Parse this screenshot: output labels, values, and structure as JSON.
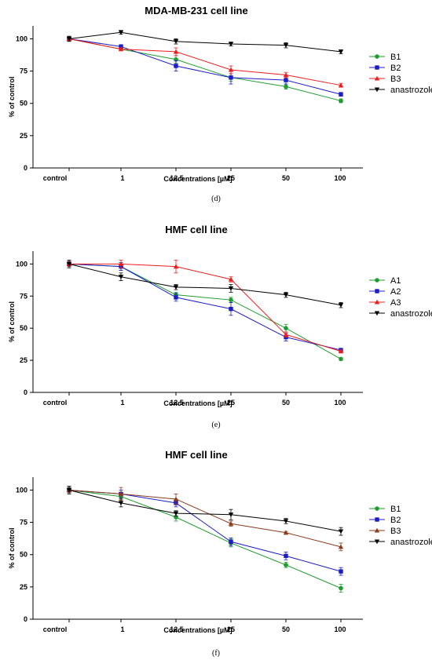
{
  "chart_data": [
    {
      "type": "line",
      "title": "MDA-MB-231 cell line",
      "xlabel": "Concentrations [µM]",
      "ylabel": "% of control",
      "panel_label": "(d)",
      "categories": [
        "control",
        "1",
        "12.5",
        "25",
        "50",
        "100"
      ],
      "ylim": [
        0,
        110
      ],
      "yticks": [
        0,
        25,
        50,
        75,
        100
      ],
      "grid": false,
      "legend_position": "right",
      "series": [
        {
          "name": "B1",
          "color": "#1e9c2e",
          "marker": "circle",
          "values": [
            100,
            92,
            84,
            70,
            63,
            52
          ],
          "errors": [
            1.5,
            1,
            3,
            3,
            2,
            1.5
          ]
        },
        {
          "name": "B2",
          "color": "#1c1cc8",
          "marker": "square",
          "values": [
            100,
            94,
            79,
            70,
            68,
            57
          ],
          "errors": [
            1.5,
            1.5,
            4,
            5,
            3,
            1.5
          ]
        },
        {
          "name": "B3",
          "color": "#f01c1c",
          "marker": "triangle-up",
          "values": [
            100,
            92,
            90,
            76,
            72,
            64
          ],
          "errors": [
            1.5,
            1,
            3,
            3,
            2,
            1.5
          ]
        },
        {
          "name": "anastrozole",
          "color": "#000000",
          "marker": "triangle-down",
          "values": [
            100,
            105,
            98,
            96,
            95,
            90
          ],
          "errors": [
            2,
            1.5,
            2,
            1.5,
            2,
            1.5
          ]
        }
      ]
    },
    {
      "type": "line",
      "title": "HMF cell line",
      "xlabel": "Concentrations [µM]",
      "ylabel": "% of control",
      "panel_label": "(e)",
      "categories": [
        "control",
        "1",
        "12.5",
        "25",
        "50",
        "100"
      ],
      "ylim": [
        0,
        110
      ],
      "yticks": [
        0,
        25,
        50,
        75,
        100
      ],
      "grid": false,
      "legend_position": "right",
      "series": [
        {
          "name": "A1",
          "color": "#1e9c2e",
          "marker": "circle",
          "values": [
            100,
            98,
            76,
            72,
            50,
            26
          ],
          "errors": [
            2,
            3,
            2,
            2,
            3,
            1
          ]
        },
        {
          "name": "A2",
          "color": "#1c1cc8",
          "marker": "square",
          "values": [
            100,
            98,
            74,
            65,
            43,
            33
          ],
          "errors": [
            2,
            3,
            3,
            5,
            3,
            1
          ]
        },
        {
          "name": "A3",
          "color": "#f01c1c",
          "marker": "triangle-up",
          "values": [
            100,
            100,
            98,
            88,
            45,
            32
          ],
          "errors": [
            2,
            3,
            5,
            2,
            2,
            1
          ]
        },
        {
          "name": "anastrozole",
          "color": "#000000",
          "marker": "triangle-down",
          "values": [
            100,
            90,
            82,
            81,
            76,
            68
          ],
          "errors": [
            3,
            3,
            2,
            3,
            2,
            2
          ]
        }
      ]
    },
    {
      "type": "line",
      "title": "HMF cell line",
      "xlabel": "Concentrations [µM]",
      "ylabel": "% of control",
      "panel_label": "(f)",
      "categories": [
        "control",
        "1",
        "12.5",
        "25",
        "50",
        "100"
      ],
      "ylim": [
        0,
        110
      ],
      "yticks": [
        0,
        25,
        50,
        75,
        100
      ],
      "grid": false,
      "legend_position": "right",
      "series": [
        {
          "name": "B1",
          "color": "#1e9c2e",
          "marker": "circle",
          "values": [
            100,
            95,
            79,
            59,
            42,
            24
          ],
          "errors": [
            2,
            2,
            3,
            3,
            2,
            3
          ]
        },
        {
          "name": "B2",
          "color": "#1c1cc8",
          "marker": "square",
          "values": [
            100,
            97,
            90,
            60,
            49,
            37
          ],
          "errors": [
            2,
            3,
            3,
            3,
            3,
            3
          ]
        },
        {
          "name": "B3",
          "color": "#8b3a1a",
          "marker": "triangle-up",
          "values": [
            100,
            97,
            93,
            74,
            67,
            56
          ],
          "errors": [
            2,
            5,
            4,
            2,
            1,
            3
          ]
        },
        {
          "name": "anastrozole",
          "color": "#000000",
          "marker": "triangle-down",
          "values": [
            100,
            90,
            82,
            81,
            76,
            68
          ],
          "errors": [
            3,
            3,
            2,
            4,
            2,
            3
          ]
        }
      ]
    }
  ]
}
